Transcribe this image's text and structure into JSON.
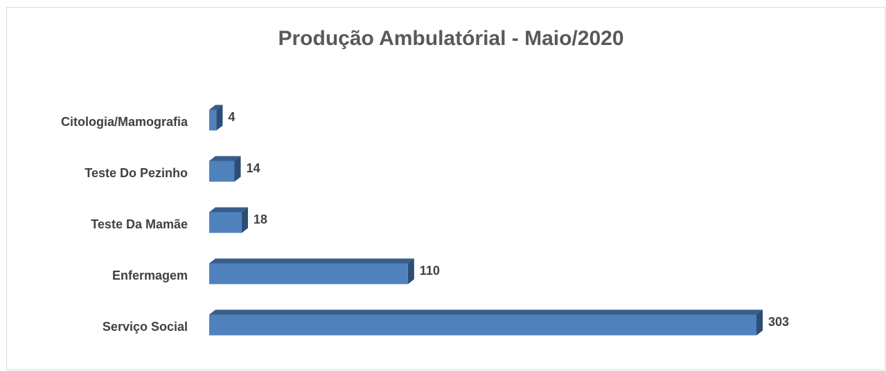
{
  "chart_data": {
    "type": "bar3d-horizontal",
    "title": "Produção Ambulatórial - Maio/2020",
    "categories": [
      "Citologia/Mamografia",
      "Teste Do Pezinho",
      "Teste Da Mamãe",
      "Enfermagem",
      "Serviço Social"
    ],
    "values": [
      4,
      14,
      18,
      110,
      303
    ],
    "color": "#4f81bd"
  }
}
